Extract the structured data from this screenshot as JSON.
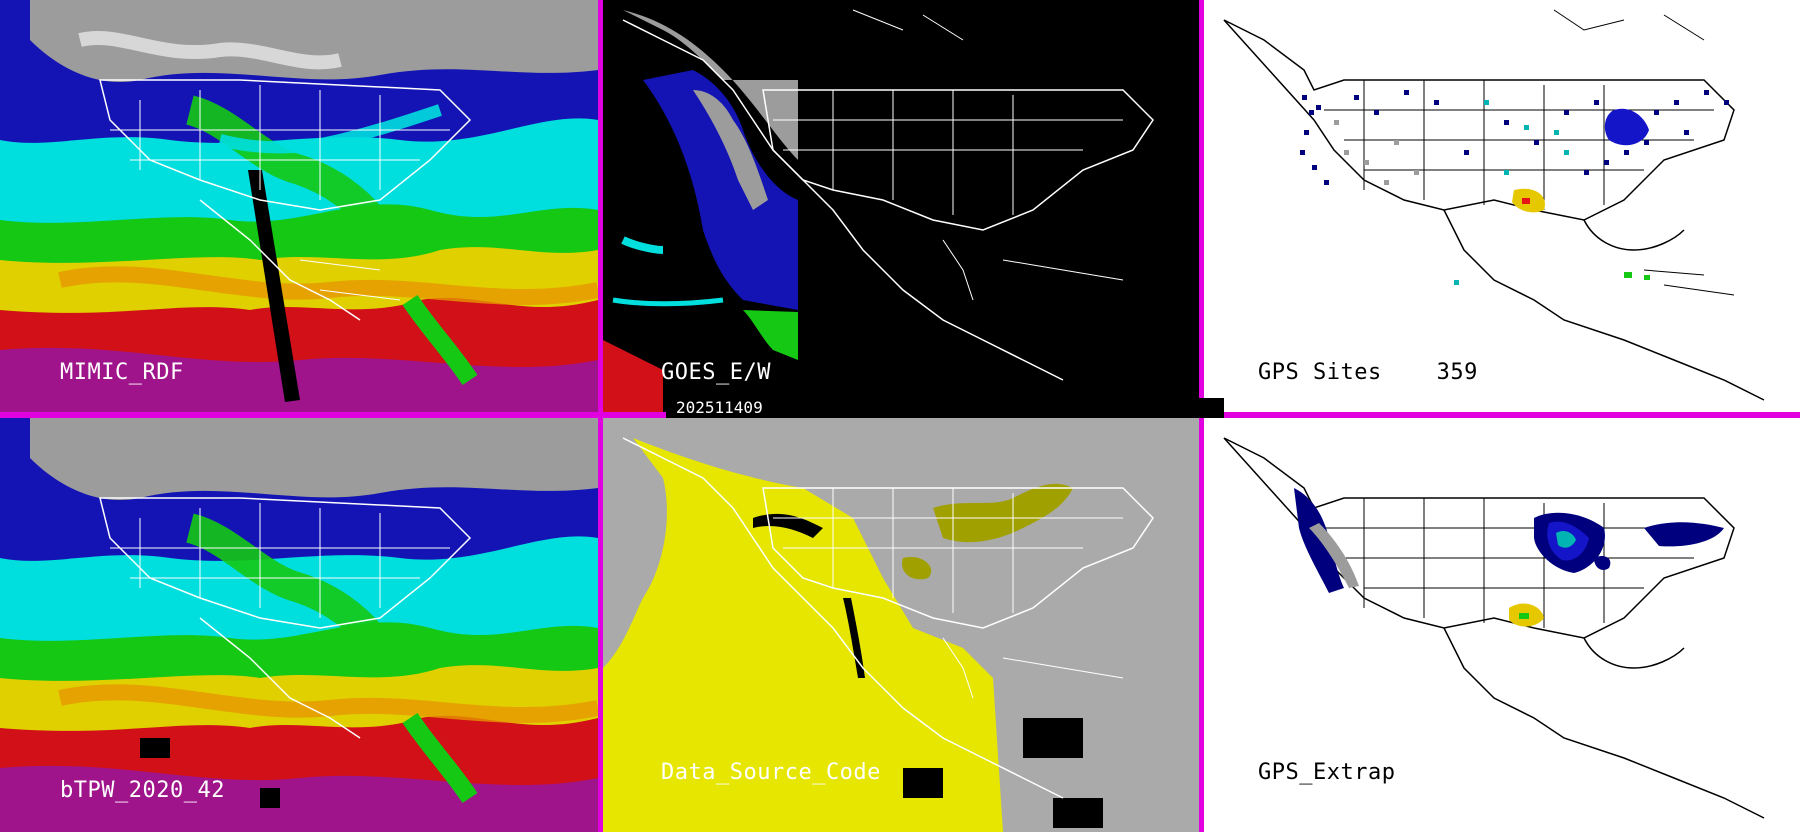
{
  "panels": [
    {
      "label": "MIMIC_RDF"
    },
    {
      "label": "GOES_E/W"
    },
    {
      "label": "GPS Sites    359"
    },
    {
      "label": "bTPW_2020_42"
    },
    {
      "label": "Data_Source_Code"
    },
    {
      "label": "GPS_Extrap"
    }
  ],
  "timestamp": "202511409",
  "colors": {
    "frame": "#e000e0",
    "tpw_scale": [
      "#ffffff",
      "#9c9c9c",
      "#00007e",
      "#1414c8",
      "#00e6e6",
      "#00c800",
      "#e6e600",
      "#e69600",
      "#e61414",
      "#9614a0"
    ]
  }
}
